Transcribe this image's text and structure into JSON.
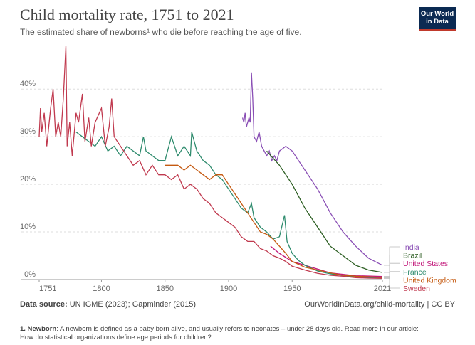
{
  "title": "Child mortality rate, 1751 to 2021",
  "subtitle": "The estimated share of newborns¹ who die before reaching the age of five.",
  "logo_lines": [
    "Our World",
    "in Data"
  ],
  "source_label": "Data source:",
  "source_text": "UN IGME (2023); Gapminder (2015)",
  "url": "OurWorldInData.org/child-mortality | CC BY",
  "footnote_label": "1. Newborn",
  "footnote_text": ": A newborn is defined as a baby born alive, and usually refers to neonates – under 28 days old. Read more in our article: How do statistical organizations define age periods for children?",
  "chart_data": {
    "type": "line",
    "xlim": [
      1751,
      2021
    ],
    "xticks": [
      1751,
      1800,
      1850,
      1900,
      1950,
      2021
    ],
    "ylim": [
      0,
      49
    ],
    "yticks": [
      {
        "value": 0,
        "label": "0%"
      },
      {
        "value": 10,
        "label": "10%"
      },
      {
        "value": 20,
        "label": "20%"
      },
      {
        "value": 30,
        "label": "30%"
      },
      {
        "value": 40,
        "label": "40%"
      }
    ],
    "grid": true,
    "series": [
      {
        "name": "India",
        "color": "#8a4fb5",
        "x": [
          1911,
          1912,
          1913,
          1914,
          1916,
          1917,
          1918,
          1919,
          1920,
          1922,
          1924,
          1926,
          1928,
          1930,
          1932,
          1934,
          1936,
          1938,
          1940,
          1945,
          1950,
          1955,
          1960,
          1970,
          1980,
          1990,
          2000,
          2010,
          2021
        ],
        "values": [
          34,
          33,
          35,
          32,
          34,
          33,
          43.5,
          38,
          30,
          29,
          31,
          28,
          27,
          26,
          27,
          25,
          26,
          25,
          27,
          28,
          27,
          25,
          23,
          19,
          14,
          10,
          7,
          4.5,
          3
        ]
      },
      {
        "name": "Brazil",
        "color": "#2c5e22",
        "x": [
          1930,
          1940,
          1950,
          1960,
          1970,
          1980,
          1990,
          2000,
          2010,
          2021
        ],
        "values": [
          27,
          24,
          20,
          15,
          11,
          7,
          5,
          3,
          2,
          1.5
        ]
      },
      {
        "name": "United States",
        "color": "#c2187a",
        "x": [
          1933,
          1940,
          1950,
          1960,
          1970,
          1980,
          1990,
          2000,
          2021
        ],
        "values": [
          7,
          5.5,
          3.8,
          3,
          2.2,
          1.4,
          1.1,
          0.8,
          0.65
        ]
      },
      {
        "name": "France",
        "color": "#2e8b6d",
        "x": [
          1780,
          1785,
          1790,
          1795,
          1800,
          1805,
          1810,
          1815,
          1820,
          1825,
          1830,
          1833,
          1835,
          1840,
          1845,
          1850,
          1853,
          1855,
          1860,
          1865,
          1870,
          1871,
          1875,
          1880,
          1885,
          1890,
          1895,
          1900,
          1905,
          1910,
          1915,
          1918,
          1920,
          1925,
          1930,
          1935,
          1940,
          1944,
          1946,
          1950,
          1955,
          1960,
          1970,
          1980,
          1990,
          2000,
          2021
        ],
        "values": [
          31,
          30,
          29,
          28,
          30,
          27,
          28,
          26,
          28,
          27,
          26,
          30,
          27,
          26,
          25,
          25,
          28,
          30,
          26,
          28,
          26,
          31,
          27,
          25,
          24,
          22,
          21,
          19,
          17,
          15,
          14,
          16,
          13,
          11,
          10,
          8.5,
          9,
          13.5,
          8,
          5.5,
          4,
          3,
          1.8,
          1.2,
          0.9,
          0.5,
          0.4
        ]
      },
      {
        "name": "United Kingdom",
        "color": "#c55a11",
        "x": [
          1850,
          1860,
          1865,
          1870,
          1875,
          1880,
          1885,
          1890,
          1895,
          1900,
          1905,
          1910,
          1915,
          1920,
          1925,
          1930,
          1935,
          1940,
          1945,
          1950,
          1960,
          1970,
          1980,
          1990,
          2000,
          2021
        ],
        "values": [
          24,
          24,
          23,
          24,
          23,
          22,
          21,
          22,
          22,
          20,
          18,
          16,
          14,
          12,
          10,
          9.5,
          8.5,
          7,
          5.5,
          3.8,
          2.6,
          2,
          1.4,
          0.9,
          0.7,
          0.45
        ]
      },
      {
        "name": "Sweden",
        "color": "#c0394e",
        "x": [
          1751,
          1752,
          1753,
          1755,
          1757,
          1760,
          1762,
          1764,
          1766,
          1768,
          1770,
          1772,
          1773,
          1775,
          1777,
          1780,
          1782,
          1785,
          1787,
          1790,
          1792,
          1795,
          1800,
          1803,
          1806,
          1808,
          1810,
          1815,
          1820,
          1825,
          1830,
          1835,
          1840,
          1845,
          1850,
          1855,
          1860,
          1865,
          1870,
          1875,
          1880,
          1885,
          1890,
          1895,
          1900,
          1905,
          1910,
          1915,
          1920,
          1925,
          1930,
          1935,
          1940,
          1945,
          1950,
          1960,
          1970,
          1980,
          1990,
          2000,
          2010,
          2021
        ],
        "values": [
          30,
          36,
          31,
          35,
          28,
          36,
          40,
          30,
          33,
          30,
          38,
          49,
          28,
          33,
          26,
          35,
          33,
          39,
          29,
          34,
          28,
          33,
          36,
          28,
          32,
          38,
          30,
          28,
          26,
          24,
          25,
          22,
          24,
          22,
          22,
          21,
          22,
          19,
          20,
          19,
          17,
          16,
          14,
          13,
          12,
          11,
          9,
          8,
          8,
          6.5,
          6,
          5,
          4.5,
          3.8,
          2.8,
          2,
          1.3,
          0.9,
          0.7,
          0.4,
          0.3,
          0.25
        ]
      }
    ]
  }
}
